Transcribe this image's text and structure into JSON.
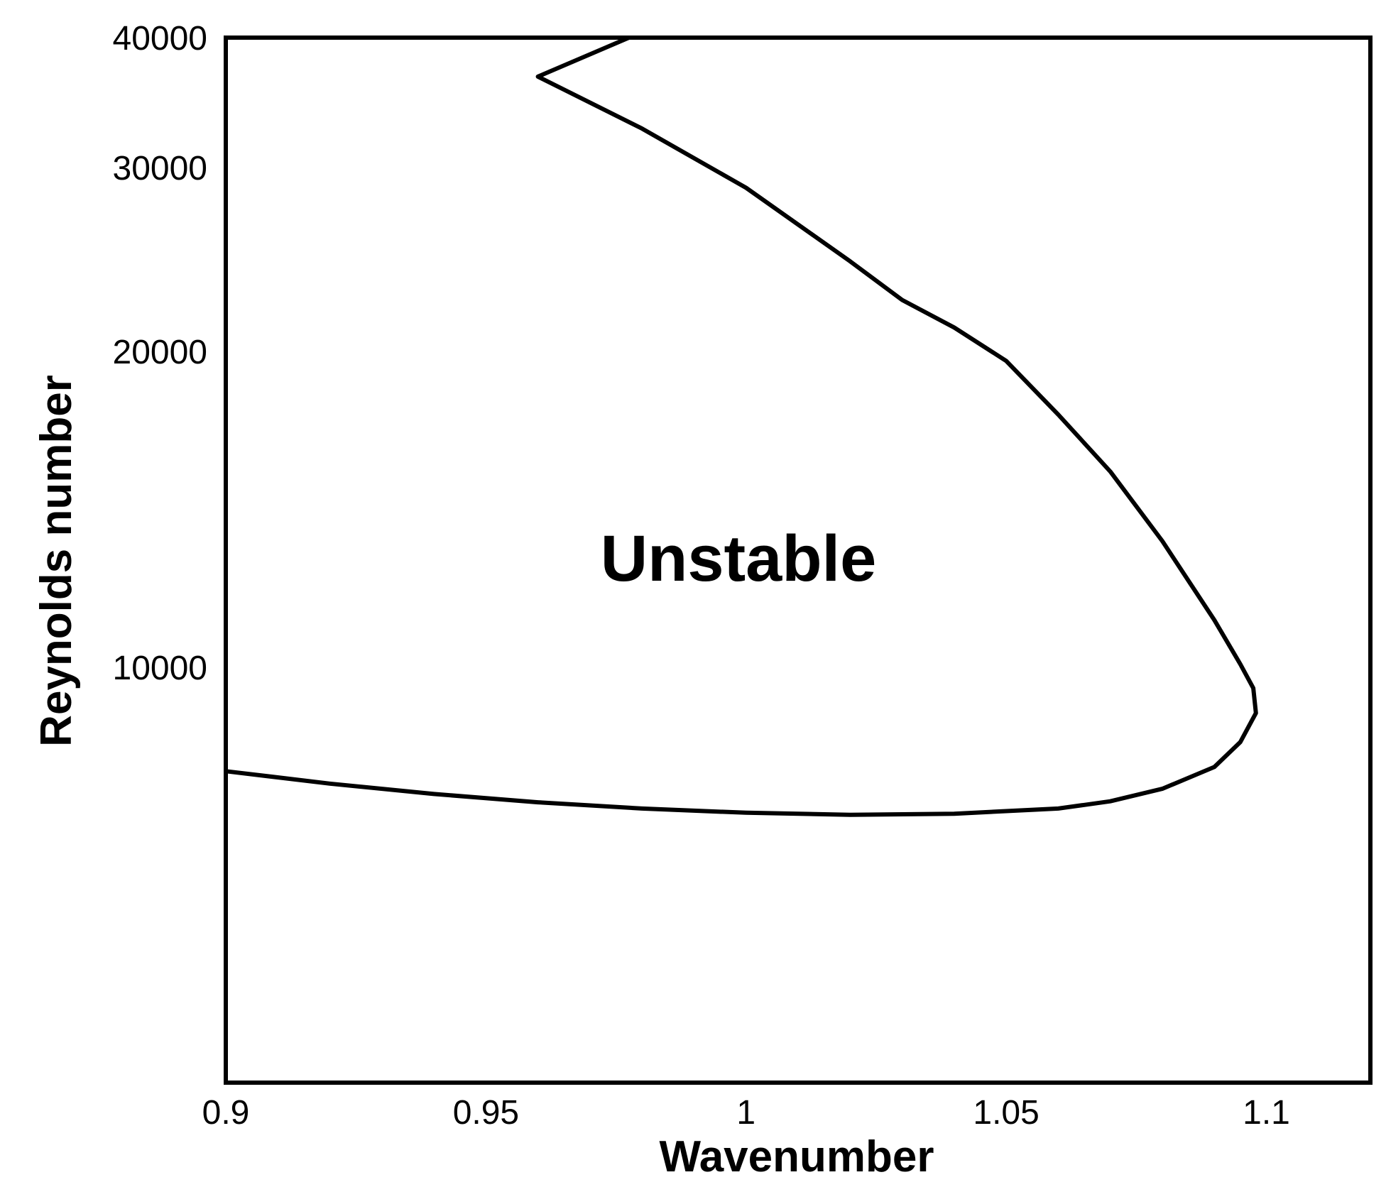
{
  "chart_data": {
    "type": "line",
    "xlabel": "Wavenumber",
    "ylabel": "Reynolds number",
    "xlim": [
      0.9,
      1.12
    ],
    "ylim": [
      -10000,
      40000
    ],
    "x_scale": "linear",
    "y_scale": "nonlinear",
    "grid": false,
    "legend": "none",
    "x_ticks": [
      {
        "value": 0.9,
        "label": "0.9"
      },
      {
        "value": 0.95,
        "label": "0.95"
      },
      {
        "value": 1.0,
        "label": "1"
      },
      {
        "value": 1.05,
        "label": "1.05"
      },
      {
        "value": 1.1,
        "label": "1.1"
      }
    ],
    "y_ticks": [
      {
        "value": 10000,
        "label": "10000"
      },
      {
        "value": 20000,
        "label": "20000"
      },
      {
        "value": 30000,
        "label": "30000"
      },
      {
        "value": 40000,
        "label": "40000"
      }
    ],
    "annotations": [
      {
        "text": "Unstable",
        "x": 1.0,
        "y": 14000
      }
    ],
    "series": [
      {
        "color": "#000000",
        "points": [
          {
            "x": 0.9,
            "y": 5000
          },
          {
            "x": 0.92,
            "y": 4400
          },
          {
            "x": 0.94,
            "y": 3900
          },
          {
            "x": 0.96,
            "y": 3500
          },
          {
            "x": 0.98,
            "y": 3200
          },
          {
            "x": 1.0,
            "y": 3000
          },
          {
            "x": 1.02,
            "y": 2900
          },
          {
            "x": 1.04,
            "y": 2950
          },
          {
            "x": 1.06,
            "y": 3200
          },
          {
            "x": 1.07,
            "y": 3550
          },
          {
            "x": 1.08,
            "y": 4150
          },
          {
            "x": 1.09,
            "y": 5200
          },
          {
            "x": 1.095,
            "y": 6400
          },
          {
            "x": 1.098,
            "y": 7800
          },
          {
            "x": 1.0975,
            "y": 9000
          },
          {
            "x": 1.095,
            "y": 10100
          },
          {
            "x": 1.09,
            "y": 11500
          },
          {
            "x": 1.08,
            "y": 14000
          },
          {
            "x": 1.07,
            "y": 16200
          },
          {
            "x": 1.06,
            "y": 18000
          },
          {
            "x": 1.05,
            "y": 19700
          },
          {
            "x": 1.04,
            "y": 21300
          },
          {
            "x": 1.03,
            "y": 22800
          },
          {
            "x": 1.02,
            "y": 24900
          },
          {
            "x": 1.0,
            "y": 28900
          },
          {
            "x": 0.98,
            "y": 33000
          },
          {
            "x": 0.96,
            "y": 37000
          },
          {
            "x": 0.9775,
            "y": 40000
          }
        ]
      }
    ]
  }
}
